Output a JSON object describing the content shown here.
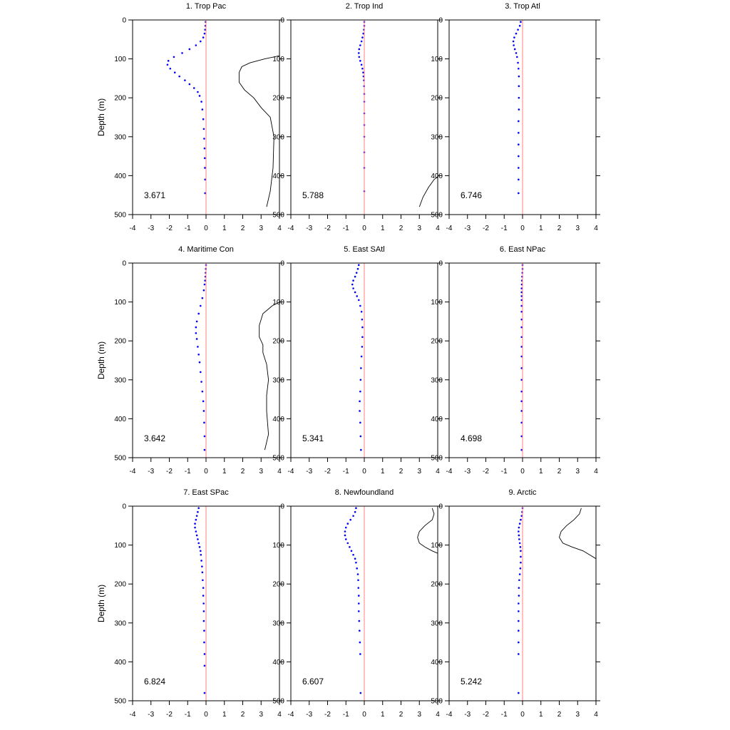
{
  "chart_data": [
    {
      "type": "line",
      "title": "1. Trop Pac",
      "ylabel": "Depth (m)",
      "annotation": "3.671",
      "xlim": [
        -4,
        4
      ],
      "ylim": [
        0,
        500
      ],
      "y_inverted": true,
      "xticks": [
        -4,
        -3,
        -2,
        -1,
        0,
        1,
        2,
        3,
        4
      ],
      "yticks": [
        0,
        100,
        200,
        300,
        400,
        500
      ],
      "series": [
        {
          "style": "dotted",
          "color": "#0000ff",
          "x": [
            -0.02,
            -0.03,
            -0.05,
            -0.08,
            -0.15,
            -0.3,
            -0.55,
            -0.9,
            -1.3,
            -1.75,
            -2.05,
            -2.1,
            -1.95,
            -1.7,
            -1.45,
            -1.15,
            -0.9,
            -0.65,
            -0.45,
            -0.35,
            -0.25,
            -0.2,
            -0.15,
            -0.12,
            -0.1,
            -0.08,
            -0.07,
            -0.06,
            -0.05,
            -0.05
          ],
          "y": [
            5,
            15,
            25,
            35,
            45,
            55,
            65,
            75,
            85,
            95,
            105,
            115,
            125,
            135,
            145,
            155,
            165,
            175,
            185,
            195,
            210,
            230,
            255,
            280,
            305,
            330,
            355,
            380,
            410,
            445
          ]
        },
        {
          "style": "solid",
          "color": "#000000",
          "x": [
            4.2,
            3.2,
            2.4,
            1.95,
            1.8,
            1.8,
            2.1,
            2.6,
            3.0,
            3.5,
            3.7,
            3.65,
            3.5,
            3.3
          ],
          "y": [
            90,
            100,
            110,
            120,
            135,
            160,
            180,
            200,
            225,
            250,
            300,
            380,
            440,
            480
          ]
        },
        {
          "style": "solid",
          "color": "#ff8080",
          "x": [
            0,
            0
          ],
          "y": [
            0,
            500
          ]
        }
      ]
    },
    {
      "type": "line",
      "title": "2. Trop Ind",
      "ylabel": "",
      "annotation": "5.788",
      "xlim": [
        -4,
        4
      ],
      "ylim": [
        0,
        500
      ],
      "y_inverted": true,
      "xticks": [
        -4,
        -3,
        -2,
        -1,
        0,
        1,
        2,
        3,
        4
      ],
      "yticks": [
        0,
        100,
        200,
        300,
        400,
        500
      ],
      "series": [
        {
          "style": "dotted",
          "color": "#0000ff",
          "x": [
            0,
            0,
            -0.02,
            -0.05,
            -0.1,
            -0.15,
            -0.22,
            -0.28,
            -0.3,
            -0.28,
            -0.22,
            -0.15,
            -0.1,
            -0.06,
            -0.04,
            -0.02,
            -0.01,
            0,
            0,
            0,
            0,
            0,
            0,
            0,
            0
          ],
          "y": [
            5,
            15,
            25,
            35,
            45,
            55,
            65,
            75,
            85,
            95,
            105,
            115,
            125,
            135,
            145,
            155,
            170,
            190,
            210,
            240,
            270,
            300,
            340,
            380,
            440
          ]
        },
        {
          "style": "solid",
          "color": "#000000",
          "x": [
            4.2,
            3.8,
            3.5,
            3.2,
            3.0
          ],
          "y": [
            395,
            410,
            430,
            455,
            480
          ]
        },
        {
          "style": "solid",
          "color": "#ff8080",
          "x": [
            0,
            0
          ],
          "y": [
            0,
            500
          ]
        }
      ]
    },
    {
      "type": "line",
      "title": "3. Trop Atl",
      "ylabel": "",
      "annotation": "6.746",
      "xlim": [
        -4,
        4
      ],
      "ylim": [
        0,
        500
      ],
      "y_inverted": true,
      "xticks": [
        -4,
        -3,
        -2,
        -1,
        0,
        1,
        2,
        3,
        4
      ],
      "yticks": [
        0,
        100,
        200,
        300,
        400,
        500
      ],
      "series": [
        {
          "style": "dotted",
          "color": "#0000ff",
          "x": [
            -0.1,
            -0.15,
            -0.25,
            -0.35,
            -0.45,
            -0.5,
            -0.48,
            -0.42,
            -0.35,
            -0.3,
            -0.25,
            -0.22,
            -0.2,
            -0.2,
            -0.2,
            -0.2,
            -0.22,
            -0.22,
            -0.22,
            -0.22,
            -0.22,
            -0.22,
            -0.22
          ],
          "y": [
            5,
            15,
            25,
            35,
            45,
            55,
            65,
            75,
            85,
            95,
            110,
            125,
            145,
            170,
            200,
            230,
            260,
            290,
            320,
            350,
            380,
            410,
            445
          ]
        },
        {
          "style": "solid",
          "color": "#ff8080",
          "x": [
            0,
            0
          ],
          "y": [
            0,
            500
          ]
        }
      ]
    },
    {
      "type": "line",
      "title": "4. Maritime Con",
      "ylabel": "Depth (m)",
      "annotation": "3.642",
      "xlim": [
        -4,
        4
      ],
      "ylim": [
        0,
        500
      ],
      "y_inverted": true,
      "xticks": [
        -4,
        -3,
        -2,
        -1,
        0,
        1,
        2,
        3,
        4
      ],
      "yticks": [
        0,
        100,
        200,
        300,
        400,
        500
      ],
      "series": [
        {
          "style": "dotted",
          "color": "#0000ff",
          "x": [
            0,
            -0.01,
            -0.02,
            -0.03,
            -0.05,
            -0.08,
            -0.12,
            -0.2,
            -0.3,
            -0.4,
            -0.5,
            -0.55,
            -0.55,
            -0.5,
            -0.45,
            -0.4,
            -0.35,
            -0.3,
            -0.25,
            -0.2,
            -0.15,
            -0.12,
            -0.1,
            -0.08,
            -0.08
          ],
          "y": [
            5,
            15,
            25,
            35,
            45,
            55,
            70,
            90,
            110,
            130,
            150,
            165,
            180,
            195,
            215,
            235,
            255,
            280,
            305,
            330,
            355,
            380,
            410,
            445,
            480
          ]
        },
        {
          "style": "solid",
          "color": "#000000",
          "x": [
            4.2,
            3.6,
            3.1,
            2.9,
            2.9,
            3.1,
            3.1,
            3.3,
            3.4,
            3.3,
            3.3,
            3.4,
            3.2
          ],
          "y": [
            95,
            110,
            130,
            160,
            190,
            210,
            230,
            260,
            300,
            340,
            380,
            440,
            480
          ]
        },
        {
          "style": "solid",
          "color": "#ff8080",
          "x": [
            0,
            0
          ],
          "y": [
            0,
            500
          ]
        }
      ]
    },
    {
      "type": "line",
      "title": "5. East SAtl",
      "ylabel": "",
      "annotation": "5.341",
      "xlim": [
        -4,
        4
      ],
      "ylim": [
        0,
        500
      ],
      "y_inverted": true,
      "xticks": [
        -4,
        -3,
        -2,
        -1,
        0,
        1,
        2,
        3,
        4
      ],
      "yticks": [
        0,
        100,
        200,
        300,
        400,
        500
      ],
      "series": [
        {
          "style": "dotted",
          "color": "#0000ff",
          "x": [
            -0.3,
            -0.35,
            -0.42,
            -0.5,
            -0.6,
            -0.65,
            -0.6,
            -0.5,
            -0.4,
            -0.3,
            -0.22,
            -0.15,
            -0.12,
            -0.1,
            -0.1,
            -0.12,
            -0.15,
            -0.18,
            -0.2,
            -0.22,
            -0.25,
            -0.25,
            -0.22,
            -0.2,
            -0.18
          ],
          "y": [
            5,
            15,
            25,
            35,
            45,
            55,
            65,
            75,
            85,
            95,
            110,
            125,
            145,
            165,
            190,
            215,
            240,
            270,
            300,
            330,
            355,
            380,
            410,
            445,
            480
          ]
        },
        {
          "style": "solid",
          "color": "#ff8080",
          "x": [
            0,
            0
          ],
          "y": [
            0,
            500
          ]
        }
      ]
    },
    {
      "type": "line",
      "title": "6. East NPac",
      "ylabel": "",
      "annotation": "4.698",
      "xlim": [
        -4,
        4
      ],
      "ylim": [
        0,
        500
      ],
      "y_inverted": true,
      "xticks": [
        -4,
        -3,
        -2,
        -1,
        0,
        1,
        2,
        3,
        4
      ],
      "yticks": [
        0,
        100,
        200,
        300,
        400,
        500
      ],
      "series": [
        {
          "style": "dotted",
          "color": "#0000ff",
          "x": [
            0,
            0,
            -0.01,
            -0.02,
            -0.03,
            -0.04,
            -0.05,
            -0.05,
            -0.05,
            -0.05,
            -0.05,
            -0.05,
            -0.05,
            -0.05,
            -0.05,
            -0.05,
            -0.05,
            -0.05,
            -0.05,
            -0.05,
            -0.05,
            -0.05,
            -0.05,
            -0.05,
            -0.05
          ],
          "y": [
            5,
            15,
            25,
            35,
            45,
            55,
            65,
            75,
            85,
            95,
            110,
            125,
            145,
            165,
            190,
            215,
            240,
            270,
            300,
            330,
            355,
            380,
            410,
            445,
            480
          ]
        },
        {
          "style": "solid",
          "color": "#ff8080",
          "x": [
            0,
            0
          ],
          "y": [
            0,
            500
          ]
        }
      ]
    },
    {
      "type": "line",
      "title": "7. East SPac",
      "ylabel": "Depth (m)",
      "annotation": "6.824",
      "xlim": [
        -4,
        4
      ],
      "ylim": [
        0,
        500
      ],
      "y_inverted": true,
      "xticks": [
        -4,
        -3,
        -2,
        -1,
        0,
        1,
        2,
        3,
        4
      ],
      "yticks": [
        0,
        100,
        200,
        300,
        400,
        500
      ],
      "series": [
        {
          "style": "dotted",
          "color": "#0000ff",
          "x": [
            -0.4,
            -0.45,
            -0.5,
            -0.55,
            -0.6,
            -0.6,
            -0.55,
            -0.5,
            -0.45,
            -0.4,
            -0.35,
            -0.3,
            -0.28,
            -0.25,
            -0.22,
            -0.2,
            -0.18,
            -0.15,
            -0.15,
            -0.13,
            -0.12,
            -0.12,
            -0.1,
            -0.1,
            -0.08,
            -0.08,
            -0.08
          ],
          "y": [
            5,
            15,
            25,
            35,
            45,
            55,
            65,
            75,
            85,
            95,
            105,
            115,
            125,
            140,
            155,
            170,
            190,
            210,
            230,
            250,
            270,
            295,
            320,
            350,
            380,
            410,
            480
          ]
        },
        {
          "style": "solid",
          "color": "#ff8080",
          "x": [
            0,
            0
          ],
          "y": [
            0,
            500
          ]
        }
      ]
    },
    {
      "type": "line",
      "title": "8. Newfoundland",
      "ylabel": "",
      "annotation": "6.607",
      "xlim": [
        -4,
        4
      ],
      "ylim": [
        0,
        500
      ],
      "y_inverted": true,
      "xticks": [
        -4,
        -3,
        -2,
        -1,
        0,
        1,
        2,
        3,
        4
      ],
      "yticks": [
        0,
        100,
        200,
        300,
        400,
        500
      ],
      "series": [
        {
          "style": "dotted",
          "color": "#0000ff",
          "x": [
            -0.45,
            -0.5,
            -0.6,
            -0.75,
            -0.9,
            -1.0,
            -1.05,
            -1.05,
            -1.0,
            -0.9,
            -0.8,
            -0.7,
            -0.6,
            -0.5,
            -0.45,
            -0.4,
            -0.35,
            -0.33,
            -0.32,
            -0.3,
            -0.3,
            -0.3,
            -0.28,
            -0.26,
            -0.24,
            -0.22,
            -0.2
          ],
          "y": [
            5,
            15,
            25,
            35,
            45,
            55,
            65,
            75,
            85,
            95,
            105,
            115,
            125,
            135,
            145,
            160,
            175,
            190,
            210,
            230,
            250,
            270,
            295,
            320,
            350,
            380,
            480
          ]
        },
        {
          "style": "solid",
          "color": "#000000",
          "x": [
            3.7,
            3.8,
            3.7,
            3.3,
            3.0,
            2.9,
            3.0,
            3.3,
            3.7,
            4.2
          ],
          "y": [
            5,
            20,
            35,
            50,
            65,
            80,
            95,
            105,
            115,
            125
          ]
        },
        {
          "style": "solid",
          "color": "#ff8080",
          "x": [
            0,
            0
          ],
          "y": [
            0,
            500
          ]
        }
      ]
    },
    {
      "type": "line",
      "title": "9. Arctic",
      "ylabel": "",
      "annotation": "5.242",
      "xlim": [
        -4,
        4
      ],
      "ylim": [
        0,
        500
      ],
      "y_inverted": true,
      "xticks": [
        -4,
        -3,
        -2,
        -1,
        0,
        1,
        2,
        3,
        4
      ],
      "yticks": [
        0,
        100,
        200,
        300,
        400,
        500
      ],
      "series": [
        {
          "style": "dotted",
          "color": "#0000ff",
          "x": [
            0,
            -0.02,
            -0.05,
            -0.1,
            -0.15,
            -0.2,
            -0.22,
            -0.2,
            -0.18,
            -0.15,
            -0.12,
            -0.1,
            -0.1,
            -0.1,
            -0.12,
            -0.15,
            -0.18,
            -0.2,
            -0.2,
            -0.22,
            -0.22,
            -0.22,
            -0.22,
            -0.22,
            -0.22,
            -0.22
          ],
          "y": [
            5,
            15,
            25,
            35,
            45,
            55,
            65,
            75,
            85,
            95,
            105,
            115,
            130,
            145,
            160,
            175,
            190,
            210,
            230,
            250,
            270,
            295,
            320,
            350,
            380,
            480
          ]
        },
        {
          "style": "solid",
          "color": "#000000",
          "x": [
            3.2,
            3.1,
            2.8,
            2.4,
            2.1,
            2.0,
            2.2,
            2.7,
            3.3,
            4.0,
            4.2
          ],
          "y": [
            5,
            20,
            35,
            50,
            65,
            80,
            95,
            105,
            115,
            135,
            140
          ]
        },
        {
          "style": "solid",
          "color": "#ff8080",
          "x": [
            0,
            0
          ],
          "y": [
            0,
            500
          ]
        }
      ]
    }
  ]
}
